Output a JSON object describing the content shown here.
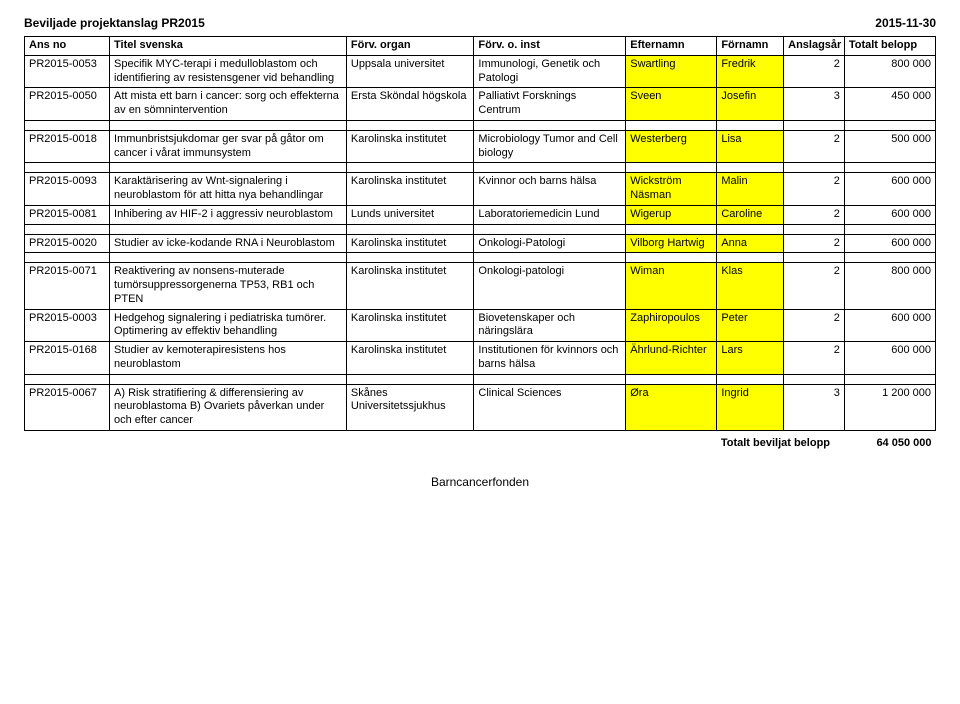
{
  "header": {
    "title": "Beviljade projektanslag PR2015",
    "date": "2015-11-30"
  },
  "columns": {
    "ans": "Ans no",
    "title": "Titel svenska",
    "org": "Förv. organ",
    "inst": "Förv. o. inst",
    "lastname": "Efternamn",
    "firstname": "Förnamn",
    "years": "Anslagsår",
    "amount": "Totalt belopp"
  },
  "groups": [
    [
      {
        "ans": "PR2015-0053",
        "title": "Specifik MYC-terapi i medulloblastom och identifiering av resistensgener vid behandling",
        "org": "Uppsala universitet",
        "inst": "Immunologi, Genetik och Patologi",
        "ln": "Swartling",
        "fn": "Fredrik",
        "yr": "2",
        "amt": "800 000",
        "hl": true
      },
      {
        "ans": "PR2015-0050",
        "title": "Att mista ett barn i cancer: sorg och effekterna av en sömnintervention",
        "org": "Ersta Sköndal högskola",
        "inst": "Palliativt Forsknings Centrum",
        "ln": "Sveen",
        "fn": "Josefin",
        "yr": "3",
        "amt": "450 000",
        "hl": true
      }
    ],
    [
      {
        "ans": "PR2015-0018",
        "title": "Immunbristsjukdomar ger svar på gåtor om cancer i vårat immunsystem",
        "org": "Karolinska institutet",
        "inst": "Microbiology Tumor and Cell biology",
        "ln": "Westerberg",
        "fn": "Lisa",
        "yr": "2",
        "amt": "500 000",
        "hl": true
      }
    ],
    [
      {
        "ans": "PR2015-0093",
        "title": "Karaktärisering av Wnt-signalering i neuroblastom för att hitta nya behandlingar",
        "org": "Karolinska institutet",
        "inst": "Kvinnor och barns hälsa",
        "ln": "Wickström Näsman",
        "fn": "Malin",
        "yr": "2",
        "amt": "600 000",
        "hl": true
      },
      {
        "ans": "PR2015-0081",
        "title": "Inhibering av HIF-2 i aggressiv neuroblastom",
        "org": "Lunds universitet",
        "inst": "Laboratoriemedicin Lund",
        "ln": "Wigerup",
        "fn": "Caroline",
        "yr": "2",
        "amt": "600 000",
        "hl": true
      }
    ],
    [
      {
        "ans": "PR2015-0020",
        "title": "Studier av icke-kodande RNA i Neuroblastom",
        "org": "Karolinska institutet",
        "inst": "Onkologi-Patologi",
        "ln": "Vilborg Hartwig",
        "fn": "Anna",
        "yr": "2",
        "amt": "600 000",
        "hl": true
      }
    ],
    [
      {
        "ans": "PR2015-0071",
        "title": "Reaktivering av nonsens-muterade tumörsuppressorgenerna TP53, RB1 och PTEN",
        "org": "Karolinska institutet",
        "inst": "Onkologi-patologi",
        "ln": "Wiman",
        "fn": "Klas",
        "yr": "2",
        "amt": "800 000",
        "hl": true
      },
      {
        "ans": "PR2015-0003",
        "title": "Hedgehog signalering i pediatriska tumörer. Optimering av effektiv behandling",
        "org": "Karolinska institutet",
        "inst": "Biovetenskaper och näringslära",
        "ln": "Zaphiropoulos",
        "fn": "Peter",
        "yr": "2",
        "amt": "600 000",
        "hl": true
      },
      {
        "ans": "PR2015-0168",
        "title": "Studier av kemoterapiresistens hos neuroblastom",
        "org": "Karolinska institutet",
        "inst": "Institutionen för kvinnors och barns hälsa",
        "ln": "Ährlund-Richter",
        "fn": "Lars",
        "yr": "2",
        "amt": "600 000",
        "hl": true
      }
    ],
    [
      {
        "ans": "PR2015-0067",
        "title": "A) Risk stratifiering & differensiering av neuroblastoma B) Ovariets påverkan under och efter cancer",
        "org": "Skånes Universitetssjukhus",
        "inst": "Clinical Sciences",
        "ln": "Øra",
        "fn": "Ingrid",
        "yr": "3",
        "amt": "1 200 000",
        "hl": true
      }
    ]
  ],
  "total": {
    "label": "Totalt beviljat belopp",
    "amount": "64 050 000"
  },
  "footer": "Barncancerfonden",
  "style": {
    "highlight_color": "#ffff00",
    "border_color": "#000000",
    "font_family": "Arial",
    "font_size_body": 11,
    "font_size_header": 12
  }
}
